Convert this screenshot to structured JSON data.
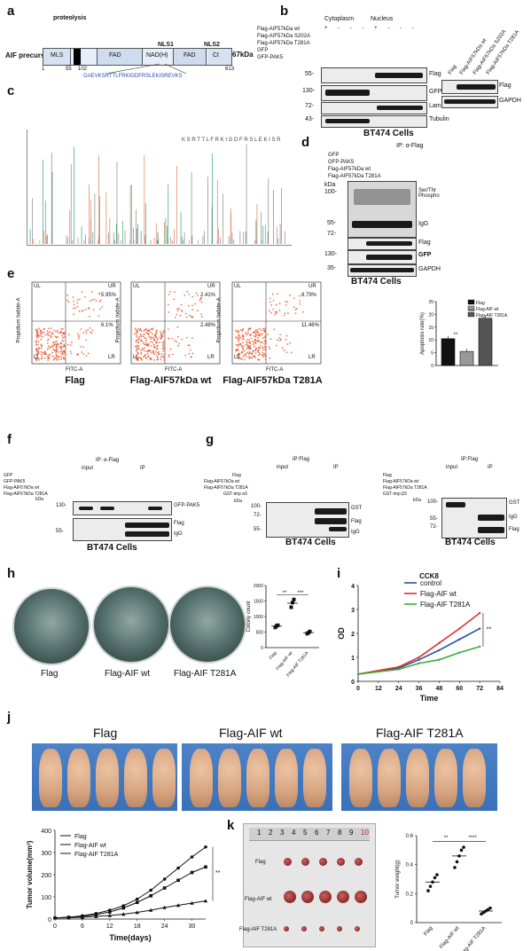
{
  "panels": {
    "a": {
      "letter": "a",
      "protein_label": "AIF precursor",
      "mass": "67kDa",
      "domains": [
        "MLS",
        "FAD",
        "NAD(H)",
        "FAD",
        "Ct"
      ],
      "top_labels": [
        "proteolysis",
        "NLS1",
        "NLS2"
      ],
      "positions": [
        "1",
        "55",
        "102",
        "613"
      ],
      "sequence": "GAEVKSRTTLFRKIGDFRSLEKISREVKS"
    },
    "b": {
      "letter": "b",
      "fractions": [
        "Cytoplasm",
        "Nucleus"
      ],
      "rows": [
        "Flag-AIF57kDa wt",
        "Flag-AIF57kDa S202A",
        "Flag-AIF57kDa T281A",
        "GFP",
        "GFP-PAK5"
      ],
      "markers": [
        "55-",
        "130-",
        "72-",
        "43-"
      ],
      "blot_labels": [
        "Flag",
        "GFP",
        "LaminB",
        "Tubulin"
      ],
      "right_lanes": [
        "Flag",
        "Flag-AIF57kDa wt",
        "Flag-AIF57kDa S202A",
        "Flag-AIF57kDa T281A"
      ],
      "right_labels": [
        "Flag",
        "GAPDH"
      ],
      "cell_line": "BT474 Cells"
    },
    "c": {
      "letter": "c",
      "peptide": "K S R T T L F R K I G D F R S L E K I S R"
    },
    "d": {
      "letter": "d",
      "ip": "IP: α-Flag",
      "rows": [
        "GFP",
        "GFP-PAK5",
        "Flag-AIF57kDa wt",
        "Flag-AIF57kDa T281A"
      ],
      "kda": "kDa",
      "markers": [
        "100-",
        "55-",
        "72-",
        "130-",
        "35-"
      ],
      "labels": [
        "Ser/Thr Phospho",
        "IgG",
        "Flag",
        "GFP",
        "GAPDH"
      ],
      "cell_line": "BT474 Cells"
    },
    "e": {
      "letter": "e",
      "plots": [
        {
          "title": "Flag",
          "UR": "5.95%",
          "LR": "6.1%"
        },
        {
          "title": "Flag-AIF57kDa wt",
          "UR": "2.41%",
          "LR": "2.48%"
        },
        {
          "title": "Flag-AIF57kDa T281A",
          "UR": "8.79%",
          "LR": "11.46%"
        }
      ],
      "quadrants": [
        "UL",
        "UR",
        "LL",
        "LR"
      ],
      "xlabel": "FITC-A",
      "ylabel": "Propidium Iodide-A",
      "bar_ylabel": "Apoptosis rate(%)",
      "legend": [
        "Flag",
        "Flag-AIF wt",
        "Flag-AIF T281A"
      ],
      "sig": [
        "**",
        "***"
      ]
    },
    "f": {
      "letter": "f",
      "ip": "IP: α-Flag",
      "groups": [
        "input",
        "IP"
      ],
      "rows": [
        "GFP",
        "GFP-PAK5",
        "Flag-AIF57kDa wt",
        "Flag-AIF57kDa T281A"
      ],
      "kda": "kDa",
      "markers": [
        "130-",
        "55-"
      ],
      "labels": [
        "GFP-PAK5",
        "Flag",
        "IgG"
      ],
      "cell_line": "BT474 Cells"
    },
    "g": {
      "letter": "g",
      "left": {
        "ip": "IP:Flag",
        "groups": [
          "input",
          "IP"
        ],
        "rows": [
          "Flag",
          "Flag-AIF57kDa wt",
          "Flag-AIF57kDa T281A",
          "GST-imp α3"
        ],
        "kda": "kDa",
        "markers": [
          "100-",
          "72-",
          "55-"
        ],
        "labels": [
          "GST",
          "Flag",
          "IgG"
        ],
        "cell_line": "BT474 Cells"
      },
      "right": {
        "ip": "IP:Flag",
        "groups": [
          "input",
          "IP"
        ],
        "rows": [
          "Flag",
          "Flag-AIF57kDa wt",
          "Flag-AIF57kDa T281A",
          "GST-imp β3"
        ],
        "kda": "kDa",
        "markers": [
          "100-",
          "55-",
          "72-"
        ],
        "labels": [
          "GST",
          "IgG",
          "Flag"
        ],
        "cell_line": "BT474 Cells"
      }
    },
    "h": {
      "letter": "h",
      "dishes": [
        "Flag",
        "Flag-AIF wt",
        "Flag-AIF T281A"
      ],
      "ylabel": "Colony count",
      "sig": [
        "**",
        "***"
      ]
    },
    "i": {
      "letter": "i",
      "title": "CCK8",
      "xlabel": "Time",
      "ylabel": "OD",
      "legend": [
        "control",
        "Flag-AIF wt",
        "Flag-AIF T281A"
      ],
      "sig": "**"
    },
    "j": {
      "letter": "j",
      "groups": [
        "Flag",
        "Flag-AIF wt",
        "Flag-AIF T281A"
      ],
      "ylabel": "Tumor volume(mm³)",
      "xlabel": "Time(days)",
      "sig": "**",
      "legend": [
        "Flag",
        "Flag-AIF wt",
        "Flag-AIF T281A"
      ]
    },
    "k": {
      "letter": "k",
      "ruler": [
        "1",
        "2",
        "3",
        "4",
        "5",
        "6",
        "7",
        "8",
        "9",
        "10"
      ],
      "rows": [
        "Flag",
        "Flag-AIF wt",
        "Flag-AIF T281A"
      ],
      "ylabel": "Tumor weight(g)",
      "sig": [
        "**",
        "****"
      ]
    }
  },
  "chart_data": [
    {
      "type": "bar",
      "panel": "e",
      "categories": [
        "Flag",
        "Flag-AIF wt",
        "Flag-AIF T281A"
      ],
      "values": [
        10.5,
        5.5,
        18.5
      ],
      "ylabel": "Apoptosis rate(%)",
      "ylim": [
        0,
        25
      ],
      "yticks": [
        0,
        5,
        10,
        15,
        20,
        25
      ],
      "colors": [
        "#111111",
        "#999999",
        "#555555"
      ]
    },
    {
      "type": "scatter",
      "panel": "h",
      "categories": [
        "Flag",
        "Flag-AIF wt",
        "Flag-AIF T281A"
      ],
      "values": [
        [
          650,
          700,
          720
        ],
        [
          1300,
          1450,
          1550
        ],
        [
          450,
          480,
          520
        ]
      ],
      "means": [
        690,
        1430,
        483
      ],
      "ylabel": "Colony count",
      "ylim": [
        0,
        2000
      ],
      "yticks": [
        0,
        500,
        1000,
        1500,
        2000
      ]
    },
    {
      "type": "line",
      "panel": "i",
      "title": "CCK8",
      "x": [
        0,
        24,
        36,
        48,
        60,
        72
      ],
      "series": [
        {
          "name": "control",
          "color": "#2b50a8",
          "values": [
            0.3,
            0.55,
            0.9,
            1.3,
            1.75,
            2.2
          ]
        },
        {
          "name": "Flag-AIF wt",
          "color": "#e03030",
          "values": [
            0.3,
            0.6,
            1.0,
            1.6,
            2.2,
            2.85
          ]
        },
        {
          "name": "Flag-AIF T281A",
          "color": "#3aad3a",
          "values": [
            0.3,
            0.5,
            0.75,
            0.9,
            1.2,
            1.45
          ]
        }
      ],
      "xlabel": "Time",
      "ylabel": "OD",
      "xlim": [
        0,
        84
      ],
      "ylim": [
        0,
        4
      ],
      "xticks": [
        0,
        12,
        24,
        36,
        48,
        60,
        72,
        84
      ],
      "yticks": [
        0,
        1,
        2,
        3,
        4
      ]
    },
    {
      "type": "line",
      "panel": "j",
      "x": [
        0,
        3,
        6,
        9,
        12,
        15,
        18,
        21,
        24,
        27,
        30,
        33
      ],
      "series": [
        {
          "name": "Flag",
          "values": [
            5,
            8,
            15,
            25,
            40,
            60,
            90,
            130,
            180,
            230,
            280,
            325
          ]
        },
        {
          "name": "Flag-AIF wt",
          "values": [
            5,
            8,
            12,
            20,
            32,
            50,
            75,
            105,
            140,
            175,
            210,
            235
          ]
        },
        {
          "name": "Flag-AIF T281A",
          "values": [
            5,
            6,
            8,
            12,
            16,
            22,
            30,
            40,
            52,
            62,
            72,
            82
          ]
        }
      ],
      "xlabel": "Time(days)",
      "ylabel": "Tumor volume(mm³)",
      "xlim": [
        0,
        33
      ],
      "ylim": [
        0,
        400
      ],
      "xticks": [
        0,
        6,
        12,
        18,
        24,
        30
      ],
      "yticks": [
        0,
        100,
        200,
        300,
        400
      ]
    },
    {
      "type": "scatter",
      "panel": "k",
      "categories": [
        "Flag",
        "Flag-AIF wt",
        "Flag-AIF T281A"
      ],
      "values": [
        [
          0.22,
          0.25,
          0.28,
          0.31,
          0.33
        ],
        [
          0.38,
          0.42,
          0.46,
          0.5,
          0.52
        ],
        [
          0.06,
          0.07,
          0.08,
          0.09,
          0.1
        ]
      ],
      "means": [
        0.28,
        0.46,
        0.08
      ],
      "ylabel": "Tumor weight(g)",
      "ylim": [
        0,
        0.6
      ],
      "yticks": [
        0,
        0.2,
        0.4,
        0.6
      ]
    }
  ]
}
